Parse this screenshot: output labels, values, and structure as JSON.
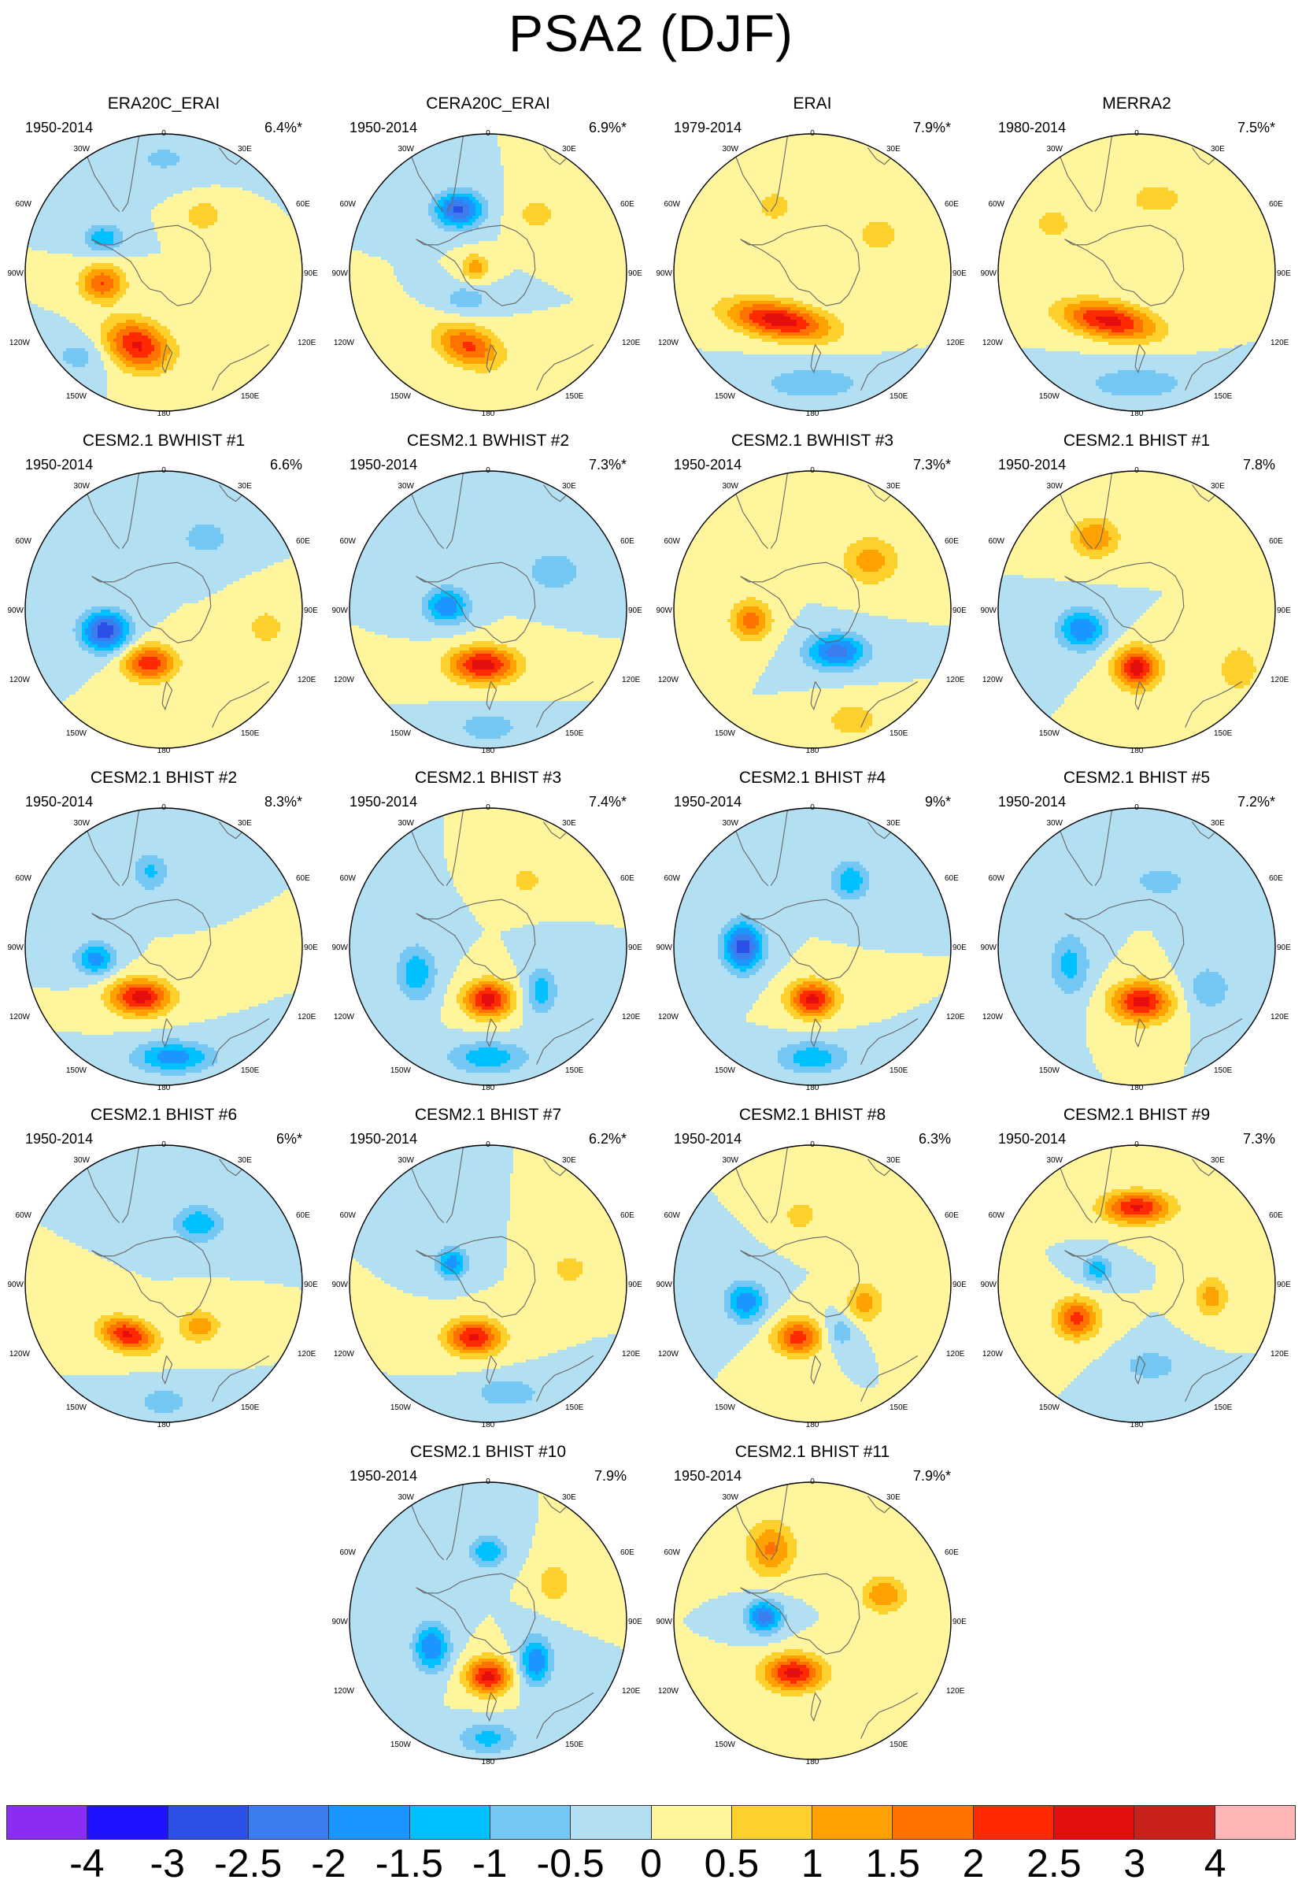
{
  "title": "PSA2 (DJF)",
  "lon_labels": {
    "top": "0",
    "bottom": "180",
    "left_top_30": "30W",
    "right_top_30": "30E",
    "left_top_60": "60W",
    "right_top_60": "60E",
    "left_90": "90W",
    "right_90": "90E",
    "left_bottom_120": "120W",
    "right_bottom_120": "120E",
    "left_bottom_150": "150W",
    "right_bottom_150": "150E"
  },
  "panels": [
    {
      "title": "ERA20C_ERAI",
      "period": "1950-2014",
      "percent": "6.4%*",
      "features": [
        {
          "lon": 200,
          "r": 0.56,
          "amp": 2.6,
          "sx": 0.17,
          "sy": 0.12,
          "rot": 20
        },
        {
          "lon": 260,
          "r": 0.45,
          "amp": 2.0,
          "sx": 0.11,
          "sy": 0.09,
          "rot": 0
        },
        {
          "lon": 300,
          "r": 0.5,
          "amp": -1.4,
          "sx": 0.1,
          "sy": 0.07,
          "rot": 0
        },
        {
          "lon": 35,
          "r": 0.5,
          "amp": 0.9,
          "sx": 0.1,
          "sy": 0.08,
          "rot": 0
        },
        {
          "lon": 225,
          "r": 0.85,
          "amp": -0.7,
          "sx": 0.16,
          "sy": 0.1,
          "rot": 0
        },
        {
          "lon": 0,
          "r": 0.82,
          "amp": -0.6,
          "sx": 0.2,
          "sy": 0.1,
          "rot": 0
        }
      ]
    },
    {
      "title": "CERA20C_ERAI",
      "period": "1950-2014",
      "percent": "6.9%*",
      "features": [
        {
          "lon": 335,
          "r": 0.5,
          "amp": -2.6,
          "sx": 0.12,
          "sy": 0.09,
          "rot": 0
        },
        {
          "lon": 195,
          "r": 0.55,
          "amp": 2.1,
          "sx": 0.17,
          "sy": 0.1,
          "rot": 20
        },
        {
          "lon": 290,
          "r": 0.1,
          "amp": 1.3,
          "sx": 0.07,
          "sy": 0.07,
          "rot": 0
        },
        {
          "lon": 220,
          "r": 0.25,
          "amp": -0.8,
          "sx": 0.12,
          "sy": 0.08,
          "rot": 0
        },
        {
          "lon": 40,
          "r": 0.55,
          "amp": 0.7,
          "sx": 0.12,
          "sy": 0.1,
          "rot": 0
        }
      ]
    },
    {
      "title": "ERAI",
      "period": "1979-2014",
      "percent": "7.9%*",
      "features": [
        {
          "lon": 215,
          "r": 0.42,
          "amp": 2.8,
          "sx": 0.26,
          "sy": 0.09,
          "rot": 10
        },
        {
          "lon": 180,
          "r": 0.8,
          "amp": -0.8,
          "sx": 0.3,
          "sy": 0.1,
          "rot": 0
        },
        {
          "lon": 330,
          "r": 0.55,
          "amp": 0.7,
          "sx": 0.12,
          "sy": 0.1,
          "rot": 0
        },
        {
          "lon": 60,
          "r": 0.55,
          "amp": 0.8,
          "sx": 0.12,
          "sy": 0.1,
          "rot": 0
        }
      ]
    },
    {
      "title": "MERRA2",
      "period": "1980-2014",
      "percent": "7.5%*",
      "features": [
        {
          "lon": 210,
          "r": 0.4,
          "amp": 2.7,
          "sx": 0.24,
          "sy": 0.09,
          "rot": 10
        },
        {
          "lon": 180,
          "r": 0.8,
          "amp": -0.8,
          "sx": 0.3,
          "sy": 0.1,
          "rot": 0
        },
        {
          "lon": 15,
          "r": 0.55,
          "amp": 0.9,
          "sx": 0.14,
          "sy": 0.08,
          "rot": 0
        },
        {
          "lon": 300,
          "r": 0.7,
          "amp": 0.7,
          "sx": 0.12,
          "sy": 0.1,
          "rot": 0
        }
      ]
    },
    {
      "title": "CESM2.1 BWHIST #1",
      "period": "1950-2014",
      "percent": "6.6%",
      "features": [
        {
          "lon": 250,
          "r": 0.45,
          "amp": -2.9,
          "sx": 0.12,
          "sy": 0.1,
          "rot": 0
        },
        {
          "lon": 195,
          "r": 0.4,
          "amp": 2.4,
          "sx": 0.13,
          "sy": 0.09,
          "rot": 0
        },
        {
          "lon": 30,
          "r": 0.6,
          "amp": -0.9,
          "sx": 0.12,
          "sy": 0.09,
          "rot": 0
        },
        {
          "lon": 100,
          "r": 0.75,
          "amp": 0.8,
          "sx": 0.1,
          "sy": 0.1,
          "rot": 0
        }
      ]
    },
    {
      "title": "CESM2.1 BWHIST #2",
      "period": "1950-2014",
      "percent": "7.3%*",
      "features": [
        {
          "lon": 185,
          "r": 0.4,
          "amp": 2.8,
          "sx": 0.17,
          "sy": 0.09,
          "rot": 0
        },
        {
          "lon": 275,
          "r": 0.3,
          "amp": -2.0,
          "sx": 0.11,
          "sy": 0.09,
          "rot": 0
        },
        {
          "lon": 60,
          "r": 0.55,
          "amp": -1.0,
          "sx": 0.14,
          "sy": 0.1,
          "rot": 0
        },
        {
          "lon": 180,
          "r": 0.85,
          "amp": -0.9,
          "sx": 0.16,
          "sy": 0.08,
          "rot": 0
        }
      ]
    },
    {
      "title": "CESM2.1 BWHIST #3",
      "period": "1950-2014",
      "percent": "7.3%*",
      "features": [
        {
          "lon": 150,
          "r": 0.35,
          "amp": -2.3,
          "sx": 0.15,
          "sy": 0.09,
          "rot": 0
        },
        {
          "lon": 260,
          "r": 0.45,
          "amp": 1.8,
          "sx": 0.1,
          "sy": 0.1,
          "rot": 0
        },
        {
          "lon": 50,
          "r": 0.55,
          "amp": 1.3,
          "sx": 0.14,
          "sy": 0.12,
          "rot": 0
        },
        {
          "lon": 160,
          "r": 0.85,
          "amp": 0.8,
          "sx": 0.15,
          "sy": 0.1,
          "rot": 0
        }
      ]
    },
    {
      "title": "CESM2.1 BHIST #1",
      "period": "1950-2014",
      "percent": "7.8%",
      "features": [
        {
          "lon": 180,
          "r": 0.42,
          "amp": 2.8,
          "sx": 0.11,
          "sy": 0.1,
          "rot": 0
        },
        {
          "lon": 250,
          "r": 0.42,
          "amp": -2.0,
          "sx": 0.12,
          "sy": 0.1,
          "rot": 0
        },
        {
          "lon": 330,
          "r": 0.6,
          "amp": 1.5,
          "sx": 0.12,
          "sy": 0.1,
          "rot": 0
        },
        {
          "lon": 120,
          "r": 0.85,
          "amp": 1.0,
          "sx": 0.1,
          "sy": 0.12,
          "rot": 0
        }
      ]
    },
    {
      "title": "CESM2.1 BHIST #2",
      "period": "1950-2014",
      "percent": "8.3%*",
      "features": [
        {
          "lon": 205,
          "r": 0.4,
          "amp": 2.8,
          "sx": 0.15,
          "sy": 0.09,
          "rot": 0
        },
        {
          "lon": 260,
          "r": 0.5,
          "amp": -1.8,
          "sx": 0.1,
          "sy": 0.08,
          "rot": 0
        },
        {
          "lon": 175,
          "r": 0.8,
          "amp": -1.8,
          "sx": 0.2,
          "sy": 0.08,
          "rot": 0
        },
        {
          "lon": 350,
          "r": 0.55,
          "amp": -1.1,
          "sx": 0.09,
          "sy": 0.1,
          "rot": 0
        }
      ]
    },
    {
      "title": "CESM2.1 BHIST #3",
      "period": "1950-2014",
      "percent": "7.4%*",
      "features": [
        {
          "lon": 180,
          "r": 0.38,
          "amp": 2.8,
          "sx": 0.12,
          "sy": 0.09,
          "rot": 0
        },
        {
          "lon": 250,
          "r": 0.55,
          "amp": -1.4,
          "sx": 0.1,
          "sy": 0.14,
          "rot": 0
        },
        {
          "lon": 130,
          "r": 0.5,
          "amp": -1.3,
          "sx": 0.08,
          "sy": 0.12,
          "rot": 0
        },
        {
          "lon": 180,
          "r": 0.8,
          "amp": -1.4,
          "sx": 0.2,
          "sy": 0.08,
          "rot": 0
        },
        {
          "lon": 30,
          "r": 0.55,
          "amp": 0.7,
          "sx": 0.1,
          "sy": 0.08,
          "rot": 0
        }
      ]
    },
    {
      "title": "CESM2.1 BHIST #4",
      "period": "1950-2014",
      "percent": "9%*",
      "features": [
        {
          "lon": 180,
          "r": 0.38,
          "amp": 2.7,
          "sx": 0.12,
          "sy": 0.09,
          "rot": 0
        },
        {
          "lon": 270,
          "r": 0.5,
          "amp": -2.8,
          "sx": 0.1,
          "sy": 0.12,
          "rot": 0
        },
        {
          "lon": 30,
          "r": 0.55,
          "amp": -1.4,
          "sx": 0.1,
          "sy": 0.1,
          "rot": 0
        },
        {
          "lon": 180,
          "r": 0.8,
          "amp": -1.4,
          "sx": 0.18,
          "sy": 0.08,
          "rot": 0
        }
      ]
    },
    {
      "title": "CESM2.1 BHIST #5",
      "period": "1950-2014",
      "percent": "7.2%*",
      "features": [
        {
          "lon": 175,
          "r": 0.4,
          "amp": 2.7,
          "sx": 0.15,
          "sy": 0.1,
          "rot": 0
        },
        {
          "lon": 255,
          "r": 0.5,
          "amp": -1.2,
          "sx": 0.1,
          "sy": 0.16,
          "rot": 0
        },
        {
          "lon": 20,
          "r": 0.5,
          "amp": -1.0,
          "sx": 0.12,
          "sy": 0.07,
          "rot": 0
        },
        {
          "lon": 120,
          "r": 0.6,
          "amp": -0.9,
          "sx": 0.12,
          "sy": 0.12,
          "rot": 0
        }
      ]
    },
    {
      "title": "CESM2.1 BHIST #6",
      "period": "1950-2014",
      "percent": "6%*",
      "features": [
        {
          "lon": 215,
          "r": 0.45,
          "amp": 2.6,
          "sx": 0.14,
          "sy": 0.08,
          "rot": 15
        },
        {
          "lon": 140,
          "r": 0.4,
          "amp": 1.4,
          "sx": 0.1,
          "sy": 0.08,
          "rot": 0
        },
        {
          "lon": 30,
          "r": 0.5,
          "amp": -1.5,
          "sx": 0.12,
          "sy": 0.09,
          "rot": 0
        },
        {
          "lon": 180,
          "r": 0.85,
          "amp": -0.8,
          "sx": 0.15,
          "sy": 0.08,
          "rot": 0
        }
      ]
    },
    {
      "title": "CESM2.1 BHIST #7",
      "period": "1950-2014",
      "percent": "6.2%*",
      "features": [
        {
          "lon": 195,
          "r": 0.4,
          "amp": 2.6,
          "sx": 0.14,
          "sy": 0.09,
          "rot": 0
        },
        {
          "lon": 300,
          "r": 0.3,
          "amp": -1.8,
          "sx": 0.08,
          "sy": 0.08,
          "rot": 0
        },
        {
          "lon": 170,
          "r": 0.8,
          "amp": -0.9,
          "sx": 0.18,
          "sy": 0.08,
          "rot": 0
        },
        {
          "lon": 80,
          "r": 0.6,
          "amp": 0.8,
          "sx": 0.1,
          "sy": 0.08,
          "rot": 0
        }
      ]
    },
    {
      "title": "CESM2.1 BHIST #8",
      "period": "1950-2014",
      "percent": "6.3%",
      "features": [
        {
          "lon": 195,
          "r": 0.4,
          "amp": 2.3,
          "sx": 0.12,
          "sy": 0.09,
          "rot": 0
        },
        {
          "lon": 255,
          "r": 0.5,
          "amp": -1.9,
          "sx": 0.1,
          "sy": 0.1,
          "rot": 0
        },
        {
          "lon": 110,
          "r": 0.4,
          "amp": 1.3,
          "sx": 0.09,
          "sy": 0.1,
          "rot": 0
        },
        {
          "lon": 350,
          "r": 0.5,
          "amp": 0.9,
          "sx": 0.08,
          "sy": 0.08,
          "rot": 0
        },
        {
          "lon": 150,
          "r": 0.4,
          "amp": -0.9,
          "sx": 0.08,
          "sy": 0.08,
          "rot": 0
        }
      ]
    },
    {
      "title": "CESM2.1 BHIST #9",
      "period": "1950-2014",
      "percent": "7.3%",
      "features": [
        {
          "lon": 0,
          "r": 0.55,
          "amp": 2.6,
          "sx": 0.17,
          "sy": 0.08,
          "rot": 0
        },
        {
          "lon": 240,
          "r": 0.5,
          "amp": 2.2,
          "sx": 0.11,
          "sy": 0.1,
          "rot": 0
        },
        {
          "lon": 100,
          "r": 0.55,
          "amp": 1.3,
          "sx": 0.08,
          "sy": 0.1,
          "rot": 0
        },
        {
          "lon": 290,
          "r": 0.3,
          "amp": -1.3,
          "sx": 0.08,
          "sy": 0.07,
          "rot": 0
        },
        {
          "lon": 170,
          "r": 0.6,
          "amp": -0.9,
          "sx": 0.14,
          "sy": 0.08,
          "rot": 0
        }
      ]
    },
    {
      "title": "CESM2.1 BHIST #10",
      "period": "1950-2014",
      "percent": "7.9%",
      "features": [
        {
          "lon": 180,
          "r": 0.4,
          "amp": 2.7,
          "sx": 0.11,
          "sy": 0.09,
          "rot": 0
        },
        {
          "lon": 245,
          "r": 0.45,
          "amp": -2.0,
          "sx": 0.09,
          "sy": 0.12,
          "rot": 0
        },
        {
          "lon": 130,
          "r": 0.45,
          "amp": -2.0,
          "sx": 0.08,
          "sy": 0.12,
          "rot": 0
        },
        {
          "lon": 0,
          "r": 0.5,
          "amp": -1.5,
          "sx": 0.09,
          "sy": 0.08,
          "rot": 0
        },
        {
          "lon": 60,
          "r": 0.55,
          "amp": 1.0,
          "sx": 0.08,
          "sy": 0.1,
          "rot": 0
        },
        {
          "lon": 180,
          "r": 0.85,
          "amp": -1.2,
          "sx": 0.15,
          "sy": 0.08,
          "rot": 0
        }
      ]
    },
    {
      "title": "CESM2.1 BHIST #11",
      "period": "1950-2014",
      "percent": "7.9%*",
      "features": [
        {
          "lon": 200,
          "r": 0.4,
          "amp": 2.7,
          "sx": 0.15,
          "sy": 0.09,
          "rot": 0
        },
        {
          "lon": 275,
          "r": 0.35,
          "amp": -2.3,
          "sx": 0.09,
          "sy": 0.08,
          "rot": 0
        },
        {
          "lon": 330,
          "r": 0.6,
          "amp": 1.6,
          "sx": 0.12,
          "sy": 0.14,
          "rot": 0
        },
        {
          "lon": 70,
          "r": 0.55,
          "amp": 1.5,
          "sx": 0.11,
          "sy": 0.09,
          "rot": 0
        }
      ]
    }
  ],
  "colorbar": {
    "colors": [
      "#8b2cf2",
      "#1d11ff",
      "#2c50e6",
      "#3c7dee",
      "#1b95ff",
      "#00c1ff",
      "#74c7f3",
      "#b3dff3",
      "#fff59c",
      "#fed02d",
      "#ffa100",
      "#ff7200",
      "#ff2a00",
      "#e40e0e",
      "#c8201b",
      "#ffb5b5"
    ],
    "labels": [
      "-4",
      "-3",
      "-2.5",
      "-2",
      "-1.5",
      "-1",
      "-0.5",
      "0",
      "0.5",
      "1",
      "1.5",
      "2",
      "2.5",
      "3",
      "4"
    ],
    "levels": [
      -4,
      -3,
      -2.5,
      -2,
      -1.5,
      -1,
      -0.5,
      0,
      0.5,
      1,
      1.5,
      2,
      2.5,
      3,
      4
    ]
  }
}
